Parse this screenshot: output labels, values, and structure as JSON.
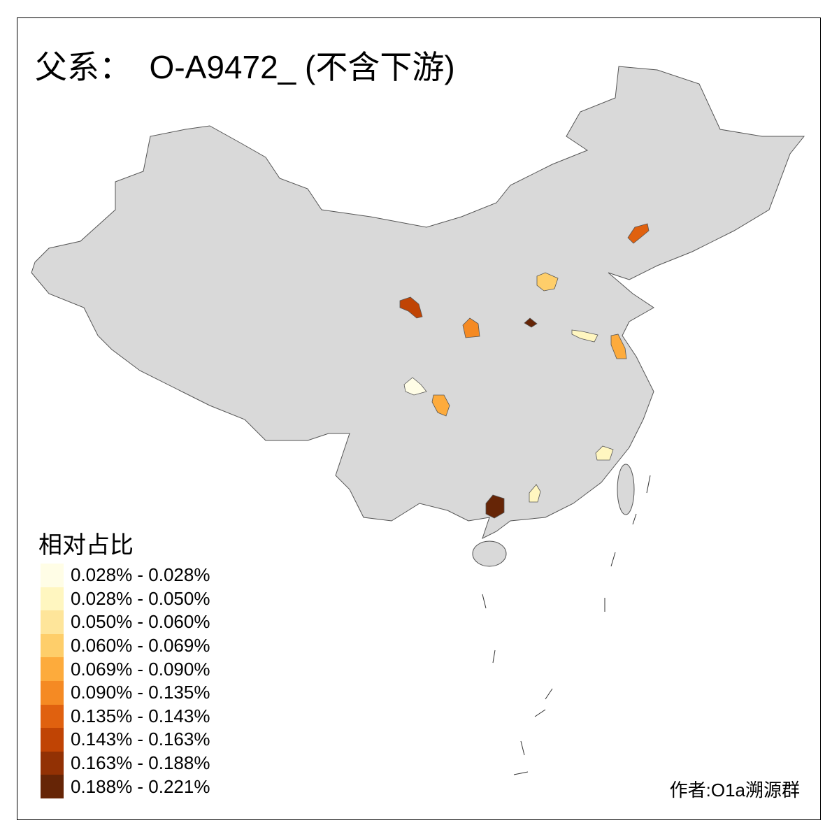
{
  "title": "父系：  O-A9472_ (不含下游)",
  "legend": {
    "title": "相对占比",
    "items": [
      {
        "label": "0.028% - 0.028%",
        "color": "#fffde6"
      },
      {
        "label": "0.028% - 0.050%",
        "color": "#fff6c0"
      },
      {
        "label": "0.050% - 0.060%",
        "color": "#fee59a"
      },
      {
        "label": "0.060% - 0.069%",
        "color": "#fece6a"
      },
      {
        "label": "0.069% - 0.090%",
        "color": "#fdab3c"
      },
      {
        "label": "0.090% - 0.135%",
        "color": "#f58a23"
      },
      {
        "label": "0.135% - 0.143%",
        "color": "#e0610f"
      },
      {
        "label": "0.143% - 0.163%",
        "color": "#c04404"
      },
      {
        "label": "0.163% - 0.188%",
        "color": "#923104"
      },
      {
        "label": "0.188% - 0.221%",
        "color": "#662506"
      }
    ]
  },
  "map": {
    "base_color": "#d9d9d9",
    "border_color": "#555555",
    "highlighted_regions": [
      {
        "class": 6,
        "color": "#e0610f"
      },
      {
        "class": 7,
        "color": "#c04404"
      },
      {
        "class": 3,
        "color": "#fece6a"
      },
      {
        "class": 5,
        "color": "#f58a23"
      },
      {
        "class": 9,
        "color": "#662506"
      },
      {
        "class": 1,
        "color": "#fff6c0"
      },
      {
        "class": 4,
        "color": "#fdab3c"
      },
      {
        "class": 0,
        "color": "#fffde6"
      },
      {
        "class": 4,
        "color": "#fdab3c"
      },
      {
        "class": 1,
        "color": "#fff6c0"
      },
      {
        "class": 1,
        "color": "#fff6c0"
      },
      {
        "class": 9,
        "color": "#662506"
      }
    ]
  },
  "credit": "作者:O1a溯源群"
}
